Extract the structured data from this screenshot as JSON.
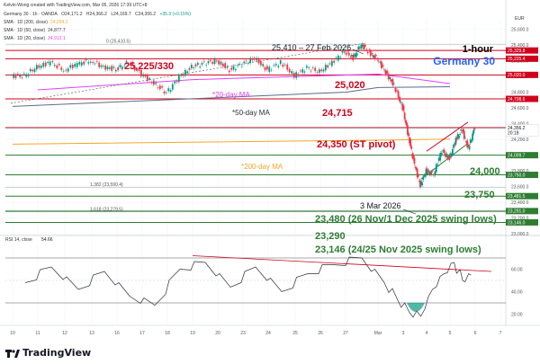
{
  "header": {
    "author": "Kelvin-Wong created with TradingView.com, Mar 05, 2026 17:39 UTC+8",
    "symbol": "Germany 30 · 1h · OANDA",
    "ohlc": [
      "O24,171.2",
      "H24,366.2",
      "L24,169.7",
      "C24,356.2",
      "+35.3 (+0.15%)"
    ],
    "indicators": [
      {
        "label": "SMA · 1D (200, close)",
        "value": "24,204.1",
        "color": "#f5a623"
      },
      {
        "label": "SMA · 1D (50, close)",
        "value": "24,877.7",
        "color": "#333333"
      },
      {
        "label": "SMA · 1D (20, close)",
        "value": "24,912.1",
        "color": "#e040fb"
      }
    ],
    "currency": "EUR"
  },
  "brand": "TradingView",
  "colors": {
    "up": "#089981",
    "down": "#f23645",
    "resistance": "#d0021b",
    "support": "#2e7d32",
    "sma200": "#f5a623",
    "sma50": "#5d6b8a",
    "sma20": "#e040fb",
    "title": "#2962ff"
  },
  "chart_data": [
    {
      "type": "candlestick",
      "title": "1-hour",
      "subtitle": "Germany 30",
      "x_ticks": [
        "10",
        "11",
        "12",
        "13",
        "16",
        "17",
        "18",
        "19",
        "20",
        "23",
        "24",
        "25",
        "26",
        "27",
        "Mar",
        "3",
        "4",
        "5",
        "6",
        "7"
      ],
      "y_ticks": [
        "25,600.0",
        "25,400.0",
        "25,200.0",
        "25,000.0",
        "24,800.0",
        "24,600.0",
        "24,400.0",
        "24,200.0",
        "24,000.0",
        "23,800.0",
        "23,600.0",
        "23,400.0",
        "23,200.0",
        "23,000.0"
      ],
      "ylim": [
        22980,
        25720
      ],
      "price_path": [
        [
          "10",
          25010
        ],
        [
          "10",
          25120
        ],
        [
          "11",
          25180
        ],
        [
          "11",
          25080
        ],
        [
          "12",
          25160
        ],
        [
          "12",
          25200
        ],
        [
          "13",
          25120
        ],
        [
          "13",
          25090
        ],
        [
          "16",
          25180
        ],
        [
          "16",
          25030
        ],
        [
          "17",
          24910
        ],
        [
          "17",
          24790
        ],
        [
          "18",
          24990
        ],
        [
          "18",
          25120
        ],
        [
          "19",
          25170
        ],
        [
          "19",
          25200
        ],
        [
          "20",
          25080
        ],
        [
          "20",
          25160
        ],
        [
          "23",
          25230
        ],
        [
          "23",
          25080
        ],
        [
          "24",
          25180
        ],
        [
          "24",
          25010
        ],
        [
          "25",
          25110
        ],
        [
          "25",
          25060
        ],
        [
          "26",
          25180
        ],
        [
          "26",
          25320
        ],
        [
          "27",
          25230
        ],
        [
          "27",
          25410
        ],
        [
          "27",
          25300
        ],
        [
          "27",
          25220
        ],
        [
          "Mar",
          25050
        ],
        [
          "Mar",
          24880
        ],
        [
          "Mar",
          24600
        ],
        [
          "3",
          24230
        ],
        [
          "3",
          23880
        ],
        [
          "3",
          23620
        ],
        [
          "3",
          23800
        ],
        [
          "4",
          23760
        ],
        [
          "4",
          24060
        ],
        [
          "4",
          23950
        ],
        [
          "5",
          24200
        ],
        [
          "5",
          24320
        ],
        [
          "5",
          24080
        ],
        [
          "5",
          24356
        ]
      ],
      "levels": [
        {
          "price": 25225,
          "label": "25,225/330",
          "kind": "resistance",
          "tag": "25,225.4"
        },
        {
          "price": 25330,
          "label": "",
          "kind": "resistance",
          "tag": "25,329.8"
        },
        {
          "price": 25020,
          "label": "25,020",
          "kind": "resistance",
          "tag": "25,020.0"
        },
        {
          "price": 24715,
          "label": "24,715",
          "kind": "resistance",
          "tag": "24,708.6"
        },
        {
          "price": 24350,
          "label": "24,350 (ST pivot)",
          "kind": "resistance",
          "tag": "24,355.3"
        },
        {
          "price": 24000,
          "label": "24,000",
          "kind": "support",
          "tag": "24,009.7"
        },
        {
          "price": 23750,
          "label": "23,750",
          "kind": "support",
          "tag": "23,750.0"
        },
        {
          "price": 23480,
          "label": "23,480 (26 Nov/1 Dec 2025 swing lows)",
          "kind": "support",
          "tag": "23,481.5"
        },
        {
          "price": 23290,
          "label": "23,290",
          "kind": "support",
          "tag": "23,291.0"
        },
        {
          "price": 23146,
          "label": "23,146 (24/25 Nov 2025 swing lows)",
          "kind": "support",
          "tag": "23,146.0"
        }
      ],
      "fib_labels": [
        {
          "text": "0 (25,410.5)",
          "price": 25410
        },
        {
          "text": "1.382 (23,590.4)",
          "price": 23590
        },
        {
          "text": "1.618 (23,279.5)",
          "price": 23279
        }
      ],
      "annotations": [
        {
          "text": "25,410 – 27 Feb 2026",
          "x": "27",
          "price": 25410
        },
        {
          "text": "3 Mar 2026",
          "x": "3",
          "price": 23620
        }
      ],
      "last_price": {
        "value": "24,356.2",
        "countdown": "20:18"
      },
      "series": [
        {
          "name": "20-day MA",
          "label": "*20-day MA",
          "points": [
            [
              "11",
              24830
            ],
            [
              "19",
              24960
            ],
            [
              "Mar",
              25030
            ],
            [
              "5",
              24910
            ]
          ]
        },
        {
          "name": "50-day MA",
          "label": "*50-day MA",
          "points": [
            [
              "10",
              24620
            ],
            [
              "27",
              24800
            ],
            [
              "Mar",
              24860
            ],
            [
              "5",
              24870
            ]
          ]
        },
        {
          "name": "200-day MA",
          "label": "*200-day MA",
          "points": [
            [
              "10",
              24140
            ],
            [
              "Mar",
              24190
            ],
            [
              "5",
              24205
            ]
          ]
        }
      ]
    },
    {
      "type": "line",
      "title": "RSI 14, close",
      "value": "54.66",
      "ylim": [
        10,
        90
      ],
      "y_ticks": [
        "60.00",
        "40.00",
        "20.00"
      ],
      "bands": [
        70,
        30
      ],
      "rsi_path": [
        [
          "10",
          48
        ],
        [
          "11",
          62
        ],
        [
          "12",
          42
        ],
        [
          "13",
          58
        ],
        [
          "16",
          36
        ],
        [
          "17",
          28
        ],
        [
          "18",
          60
        ],
        [
          "19",
          66
        ],
        [
          "20",
          44
        ],
        [
          "23",
          62
        ],
        [
          "24",
          40
        ],
        [
          "25",
          56
        ],
        [
          "26",
          64
        ],
        [
          "27",
          70
        ],
        [
          "Mar",
          48
        ],
        [
          "Mar",
          34
        ],
        [
          "3",
          22
        ],
        [
          "3",
          18
        ],
        [
          "4",
          42
        ],
        [
          "4",
          56
        ],
        [
          "5",
          66
        ],
        [
          "5",
          50
        ],
        [
          "5",
          54.66
        ]
      ]
    }
  ]
}
